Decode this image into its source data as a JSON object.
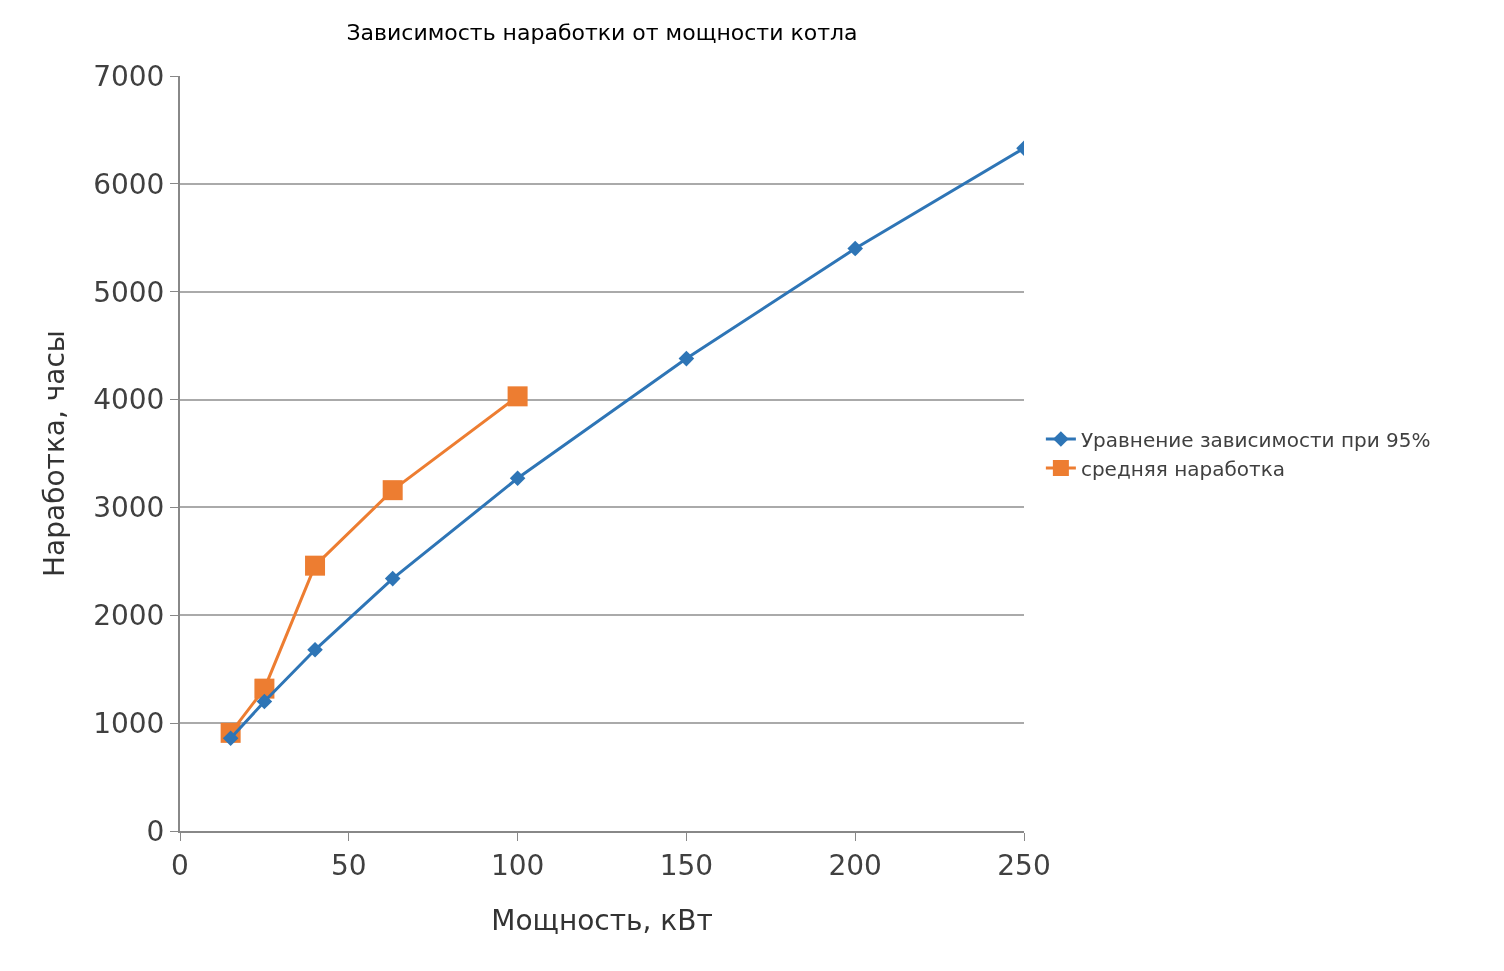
{
  "chart_data": {
    "type": "line",
    "title": "Зависимость наработки от мощности котла",
    "xlabel": "Мощность, кВт",
    "ylabel": "Наработка, часы",
    "xlim": [
      0,
      250
    ],
    "xticks": [
      0,
      50,
      100,
      150,
      200,
      250
    ],
    "ylim": [
      0,
      7000
    ],
    "yticks": [
      0,
      1000,
      2000,
      3000,
      4000,
      5000,
      6000,
      7000
    ],
    "grid": "y",
    "legend": "right",
    "series": [
      {
        "name": "Уравнение зависимости при 95%",
        "color": "#2e75b6",
        "marker": "diamond",
        "x": [
          15,
          25,
          40,
          63,
          100,
          150,
          200,
          250
        ],
        "values": [
          860,
          1200,
          1680,
          2340,
          3270,
          4380,
          5400,
          6330
        ]
      },
      {
        "name": "средняя наработка",
        "color": "#ed7d31",
        "marker": "square",
        "x": [
          15,
          25,
          40,
          63,
          100
        ],
        "values": [
          910,
          1320,
          2460,
          3160,
          4030
        ]
      }
    ]
  }
}
